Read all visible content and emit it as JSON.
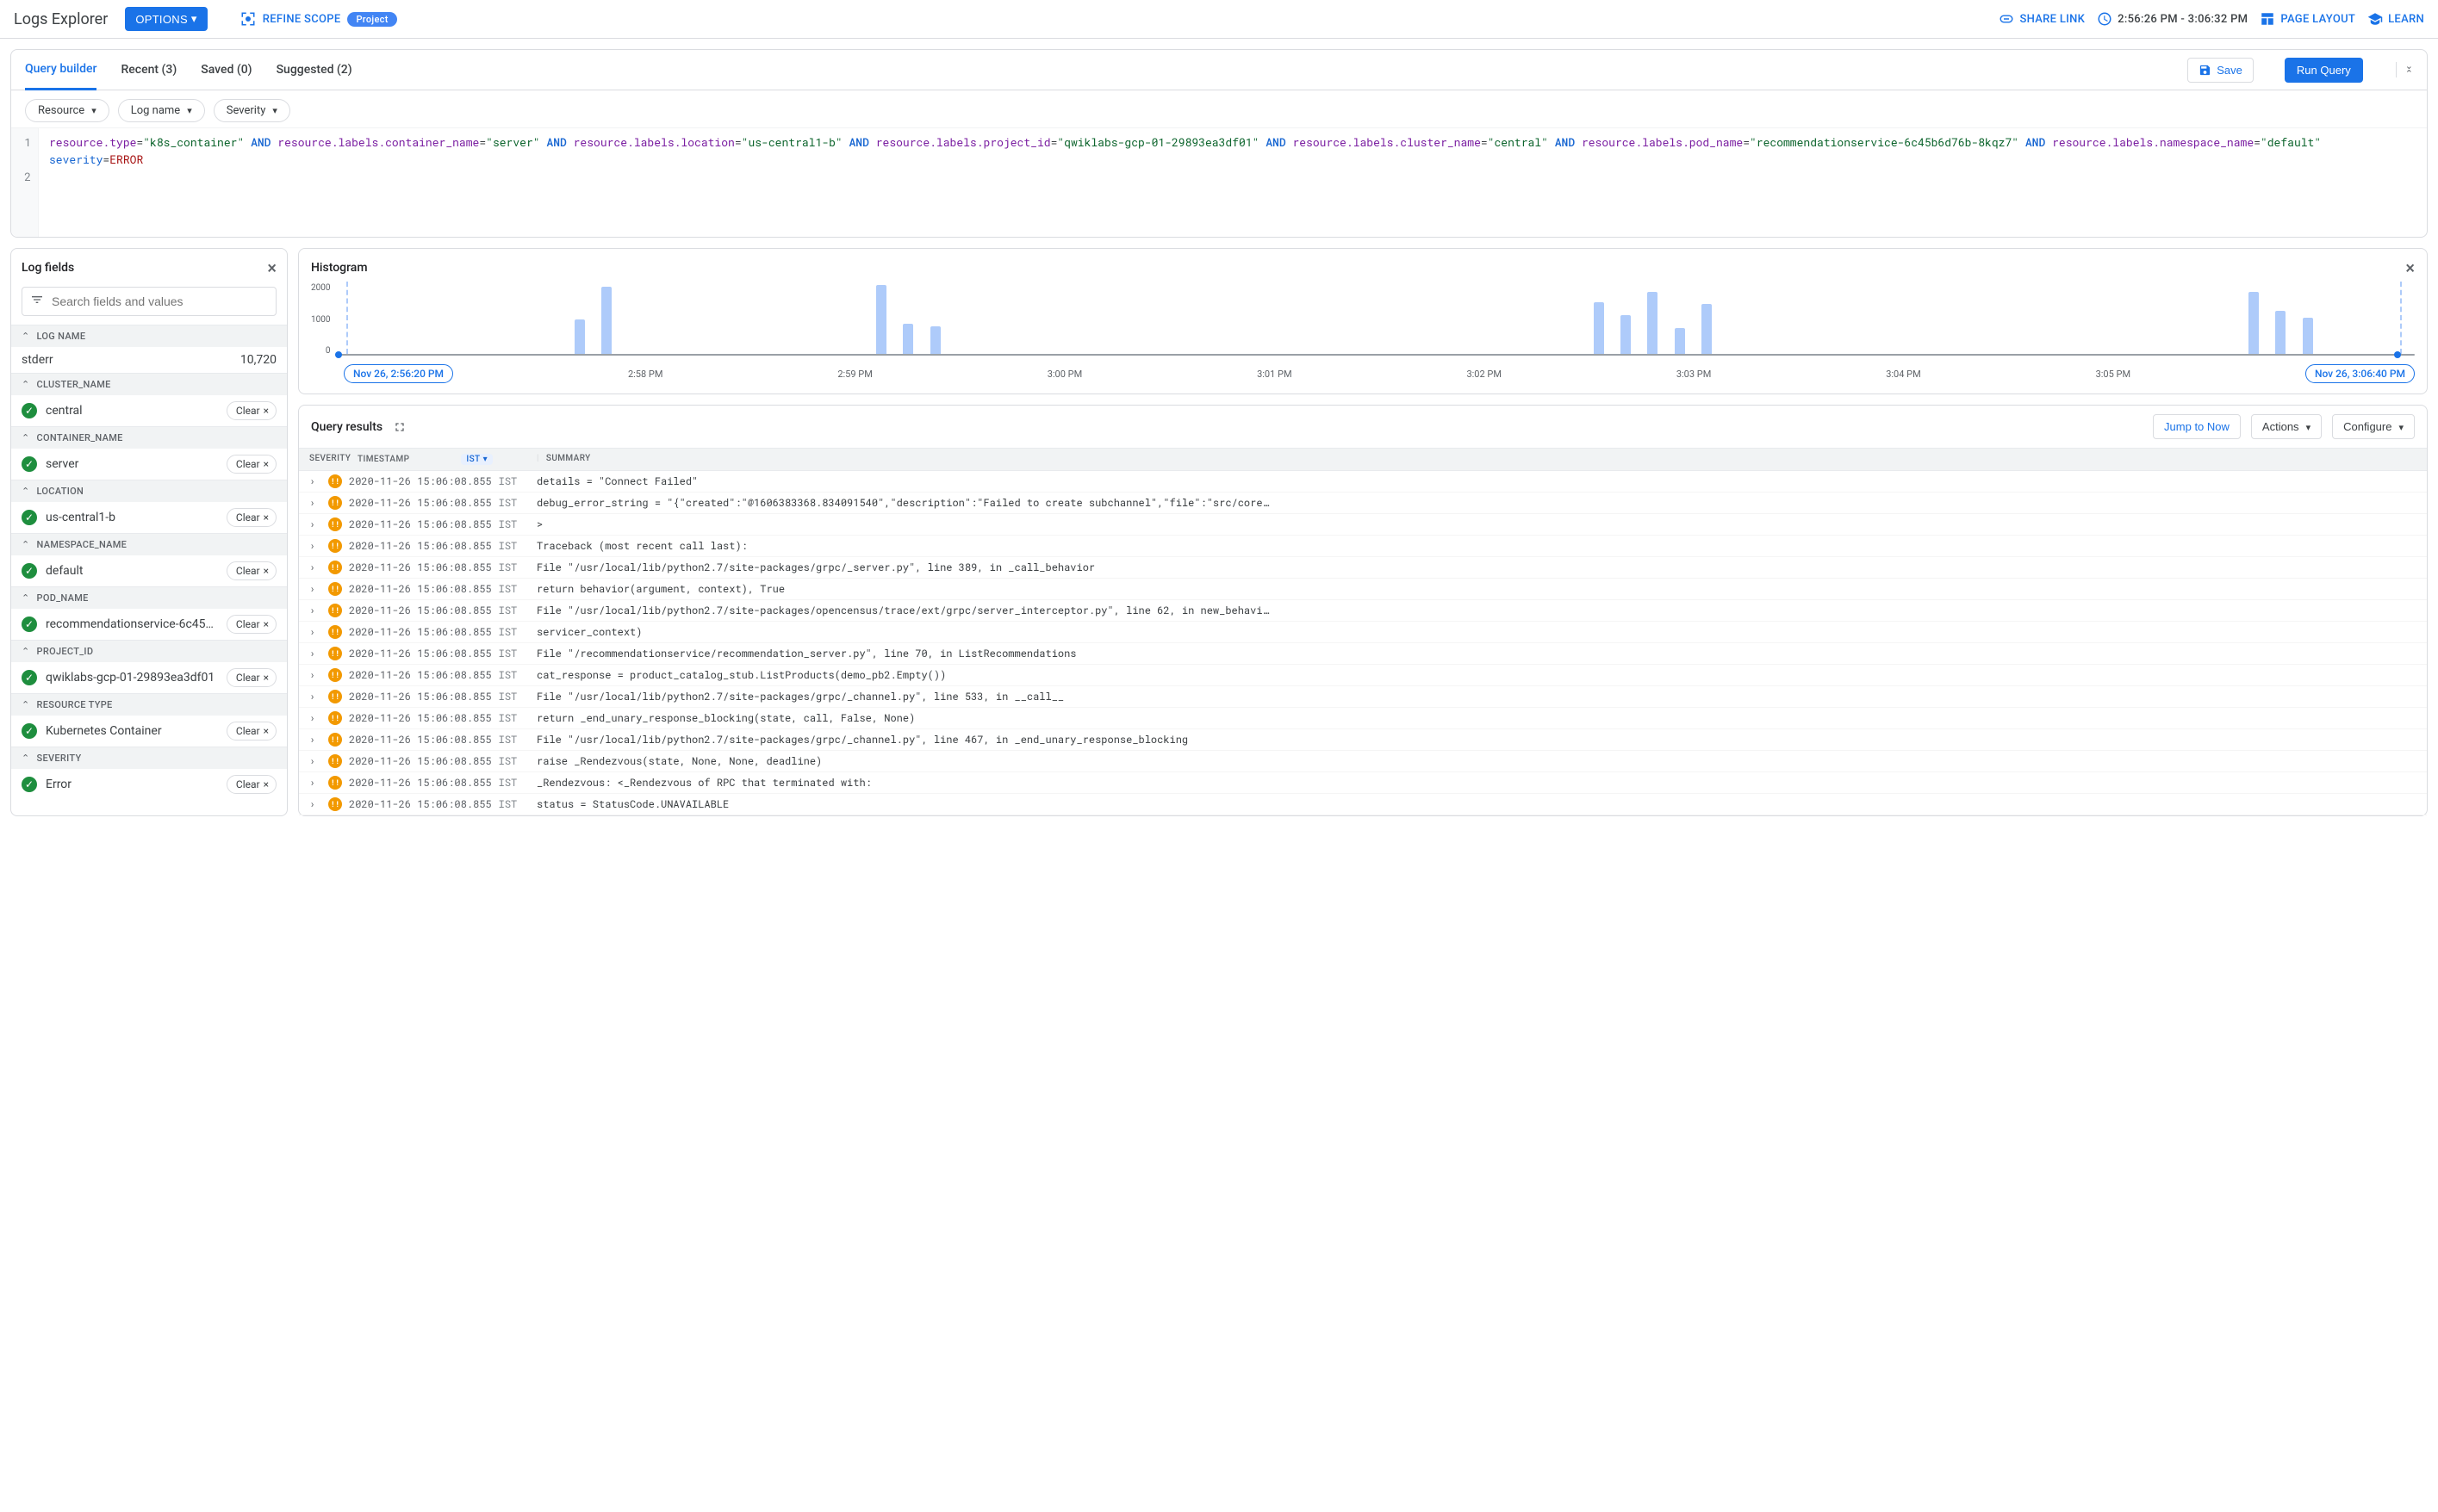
{
  "colors": {
    "primary": "#1a73e8",
    "barFill": "#aecbfa",
    "sevError": "#f29900",
    "checkGreen": "#1e8e3e",
    "border": "#dadce0",
    "headerBg": "#f1f3f4"
  },
  "topbar": {
    "title": "Logs Explorer",
    "options": "OPTIONS",
    "refine": "REFINE SCOPE",
    "scopeChip": "Project",
    "share": "SHARE LINK",
    "timeRange": "2:56:26 PM - 3:06:32 PM",
    "layout": "PAGE LAYOUT",
    "learn": "LEARN"
  },
  "tabs": {
    "t1": "Query builder",
    "t2": "Recent (3)",
    "t3": "Saved (0)",
    "t4": "Suggested (2)",
    "save": "Save",
    "run": "Run Query"
  },
  "chips": {
    "resource": "Resource",
    "logname": "Log name",
    "severity": "Severity"
  },
  "editor": {
    "line1": "1",
    "line2": "2",
    "q": {
      "k1": "resource.type",
      "v1": "\"k8s_container\"",
      "k2": "resource.labels.container_name",
      "v2": "\"server\"",
      "k3": "resource.labels.location",
      "v3": "\"us-central1-b\"",
      "k4": "resource.labels.project_id",
      "v4": "\"qwiklabs-gcp-01-29893ea3df01\"",
      "k5": "resource.labels.cluster_name",
      "v5": "\"central\"",
      "k6": "resource.labels.pod_name",
      "v6": "\"recommendationservice-6c45b6d76b-8kqz7\"",
      "k7": "resource.labels.namespace_name",
      "v7": "\"default\"",
      "k8": "severity",
      "v8": "ERROR",
      "and": "AND",
      "eq": "="
    }
  },
  "logFields": {
    "title": "Log fields",
    "searchPlaceholder": "Search fields and values",
    "groups": [
      {
        "name": "LOG NAME",
        "items": [
          {
            "label": "stderr",
            "count": "10,720",
            "clear": false
          }
        ]
      },
      {
        "name": "CLUSTER_NAME",
        "items": [
          {
            "label": "central",
            "clear": true
          }
        ]
      },
      {
        "name": "CONTAINER_NAME",
        "items": [
          {
            "label": "server",
            "clear": true
          }
        ]
      },
      {
        "name": "LOCATION",
        "items": [
          {
            "label": "us-central1-b",
            "clear": true
          }
        ]
      },
      {
        "name": "NAMESPACE_NAME",
        "items": [
          {
            "label": "default",
            "clear": true
          }
        ]
      },
      {
        "name": "POD_NAME",
        "items": [
          {
            "label": "recommendationservice-6c45b...",
            "clear": true
          }
        ]
      },
      {
        "name": "PROJECT_ID",
        "items": [
          {
            "label": "qwiklabs-gcp-01-29893ea3df01",
            "clear": true
          }
        ]
      },
      {
        "name": "RESOURCE TYPE",
        "items": [
          {
            "label": "Kubernetes Container",
            "clear": true
          }
        ]
      },
      {
        "name": "SEVERITY",
        "items": [
          {
            "label": "Error",
            "clear": true
          }
        ]
      }
    ],
    "clearLabel": "Clear"
  },
  "histogram": {
    "title": "Histogram",
    "yTicks": [
      "2000",
      "1000",
      "0"
    ],
    "bars": [
      {
        "left": 11.5,
        "h": 40
      },
      {
        "left": 12.8,
        "h": 78
      },
      {
        "left": 26.0,
        "h": 80
      },
      {
        "left": 27.3,
        "h": 35
      },
      {
        "left": 28.6,
        "h": 32
      },
      {
        "left": 60.5,
        "h": 60
      },
      {
        "left": 61.8,
        "h": 45
      },
      {
        "left": 63.1,
        "h": 72
      },
      {
        "left": 64.4,
        "h": 30
      },
      {
        "left": 65.7,
        "h": 58
      },
      {
        "left": 92.0,
        "h": 72
      },
      {
        "left": 93.3,
        "h": 50
      },
      {
        "left": 94.6,
        "h": 42
      }
    ],
    "xTicks": [
      "2:58 PM",
      "2:59 PM",
      "3:00 PM",
      "3:01 PM",
      "3:02 PM",
      "3:03 PM",
      "3:04 PM",
      "3:05 PM"
    ],
    "leftChip": "Nov 26, 2:56:20 PM",
    "rightChip": "Nov 26, 3:06:40 PM"
  },
  "results": {
    "title": "Query results",
    "jump": "Jump to Now",
    "actions": "Actions",
    "configure": "Configure",
    "head": {
      "sev": "SEVERITY",
      "ts": "TIMESTAMP",
      "tz": "IST",
      "sum": "SUMMARY"
    },
    "ts": "2020-11-26 15:06:08.855",
    "tz": "IST",
    "rows": [
      "details = \"Connect Failed\"",
      "debug_error_string = \"{\"created\":\"@1606383368.834091540\",\"description\":\"Failed to create subchannel\",\"file\":\"src/core…",
      ">",
      "Traceback (most recent call last):",
      "File \"/usr/local/lib/python2.7/site-packages/grpc/_server.py\", line 389, in _call_behavior",
      "return behavior(argument, context), True",
      "File \"/usr/local/lib/python2.7/site-packages/opencensus/trace/ext/grpc/server_interceptor.py\", line 62, in new_behavi…",
      "servicer_context)",
      "File \"/recommendationservice/recommendation_server.py\", line 70, in ListRecommendations",
      "cat_response = product_catalog_stub.ListProducts(demo_pb2.Empty())",
      "File \"/usr/local/lib/python2.7/site-packages/grpc/_channel.py\", line 533, in __call__",
      "return _end_unary_response_blocking(state, call, False, None)",
      "File \"/usr/local/lib/python2.7/site-packages/grpc/_channel.py\", line 467, in _end_unary_response_blocking",
      "raise _Rendezvous(state, None, None, deadline)",
      "_Rendezvous: <_Rendezvous of RPC that terminated with:",
      "status = StatusCode.UNAVAILABLE"
    ]
  }
}
